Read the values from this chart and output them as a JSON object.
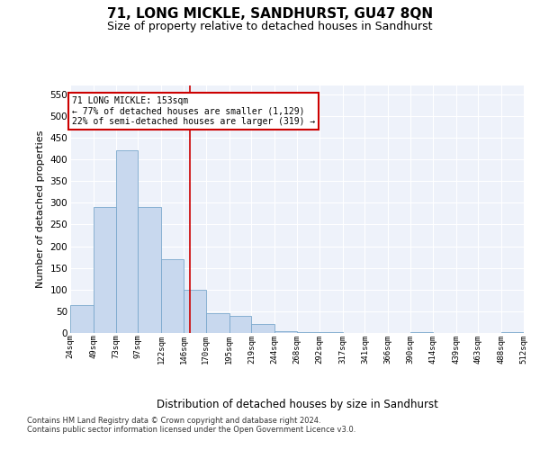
{
  "title": "71, LONG MICKLE, SANDHURST, GU47 8QN",
  "subtitle": "Size of property relative to detached houses in Sandhurst",
  "xlabel": "Distribution of detached houses by size in Sandhurst",
  "ylabel": "Number of detached properties",
  "bar_color": "#c8d8ee",
  "bar_edge_color": "#7aa8cc",
  "background_color": "#eef2fa",
  "grid_color": "#ffffff",
  "vline_x": 153,
  "vline_color": "#cc0000",
  "annotation_text": "71 LONG MICKLE: 153sqm\n← 77% of detached houses are smaller (1,129)\n22% of semi-detached houses are larger (319) →",
  "annotation_box_color": "#cc0000",
  "footnote": "Contains HM Land Registry data © Crown copyright and database right 2024.\nContains public sector information licensed under the Open Government Licence v3.0.",
  "bin_edges": [
    24,
    49,
    73,
    97,
    122,
    146,
    170,
    195,
    219,
    244,
    268,
    292,
    317,
    341,
    366,
    390,
    414,
    439,
    463,
    488,
    512
  ],
  "bar_heights": [
    65,
    290,
    420,
    290,
    170,
    100,
    45,
    40,
    20,
    5,
    2,
    2,
    0,
    0,
    0,
    2,
    0,
    0,
    0,
    2
  ],
  "ylim": [
    0,
    570
  ],
  "yticks": [
    0,
    50,
    100,
    150,
    200,
    250,
    300,
    350,
    400,
    450,
    500,
    550
  ]
}
